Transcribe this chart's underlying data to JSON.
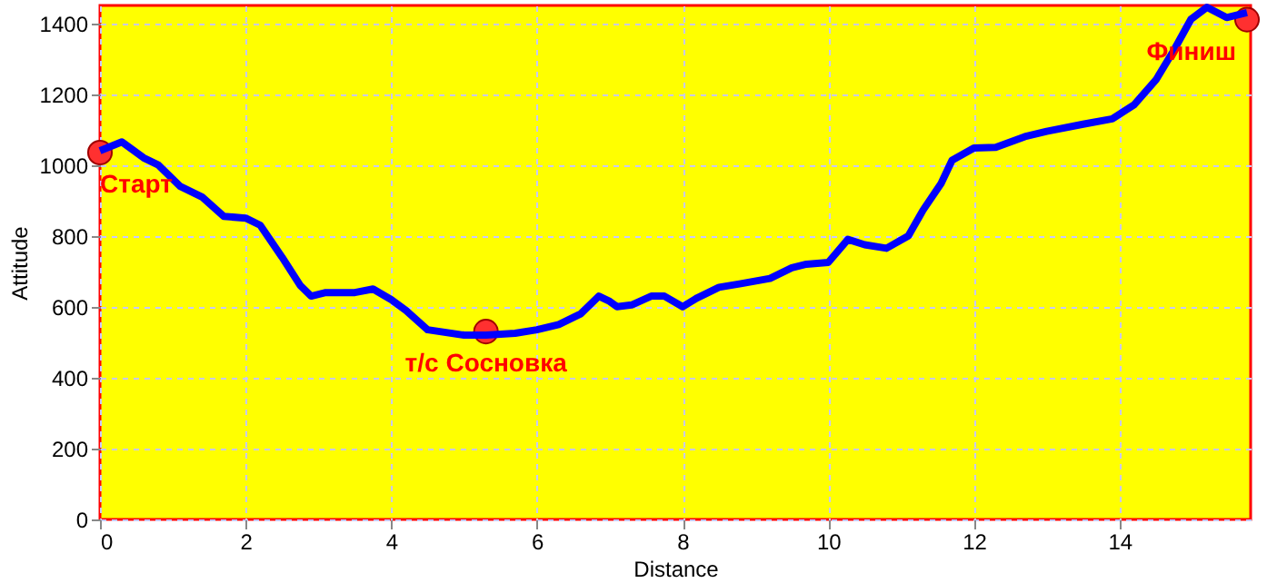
{
  "chart_data": {
    "type": "line",
    "xlabel": "Distance",
    "ylabel": "Attitude",
    "xlim": [
      0,
      15.8
    ],
    "ylim": [
      0,
      1450
    ],
    "xticks": [
      0,
      2,
      4,
      6,
      8,
      10,
      12,
      14
    ],
    "yticks": [
      0,
      200,
      400,
      600,
      800,
      1000,
      1200,
      1400
    ],
    "grid": true,
    "legend": false,
    "marker": "none",
    "line_style": "solid",
    "x": [
      0,
      0.3,
      0.6,
      0.8,
      1.1,
      1.4,
      1.7,
      2.0,
      2.2,
      2.5,
      2.75,
      2.9,
      3.1,
      3.5,
      3.75,
      4.0,
      4.2,
      4.5,
      5.0,
      5.3,
      5.7,
      6.0,
      6.3,
      6.6,
      6.85,
      7.0,
      7.1,
      7.3,
      7.57,
      7.75,
      8.0,
      8.2,
      8.5,
      8.8,
      9.2,
      9.5,
      9.7,
      10.0,
      10.27,
      10.5,
      10.8,
      11.1,
      11.3,
      11.55,
      11.7,
      12.0,
      12.3,
      12.7,
      13.0,
      13.5,
      13.9,
      14.2,
      14.5,
      14.75,
      14.98,
      15.2,
      15.47,
      15.75
    ],
    "series": [
      {
        "color": "#0000ff",
        "values": [
          1040,
          1065,
          1020,
          1000,
          940,
          910,
          855,
          850,
          830,
          740,
          660,
          630,
          640,
          640,
          650,
          620,
          590,
          535,
          520,
          520,
          525,
          535,
          550,
          580,
          630,
          615,
          600,
          605,
          630,
          630,
          600,
          625,
          655,
          665,
          680,
          710,
          720,
          725,
          790,
          775,
          765,
          800,
          872,
          948,
          1013,
          1048,
          1050,
          1080,
          1095,
          1115,
          1130,
          1170,
          1240,
          1325,
          1411,
          1445,
          1416,
          1430
        ]
      }
    ],
    "annotations": [
      {
        "text": "Старт",
        "x": 0,
        "y": 1035
      },
      {
        "text": "т/с Сосновка",
        "x": 5.3,
        "y": 530
      },
      {
        "text": "Финиш",
        "x": 15.75,
        "y": 1410
      }
    ]
  }
}
